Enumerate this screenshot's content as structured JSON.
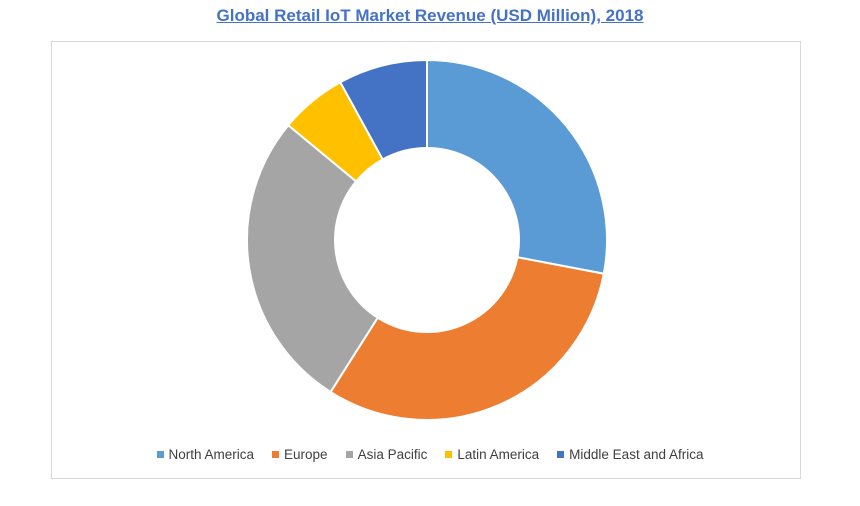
{
  "chart_data": {
    "type": "pie",
    "variant": "donut",
    "title": "Global Retail IoT Market Revenue (USD Million), 2018",
    "categories": [
      "North America",
      "Europe",
      "Asia Pacific",
      "Latin America",
      "Middle East and Africa"
    ],
    "values": [
      28.0,
      31.0,
      27.0,
      6.0,
      8.0
    ],
    "unit": "%",
    "colors": [
      "#5b9bd5",
      "#ed7d31",
      "#a5a5a5",
      "#ffc000",
      "#4472c4"
    ],
    "legend_position": "bottom",
    "start_angle_deg": 0,
    "direction": "clockwise"
  }
}
